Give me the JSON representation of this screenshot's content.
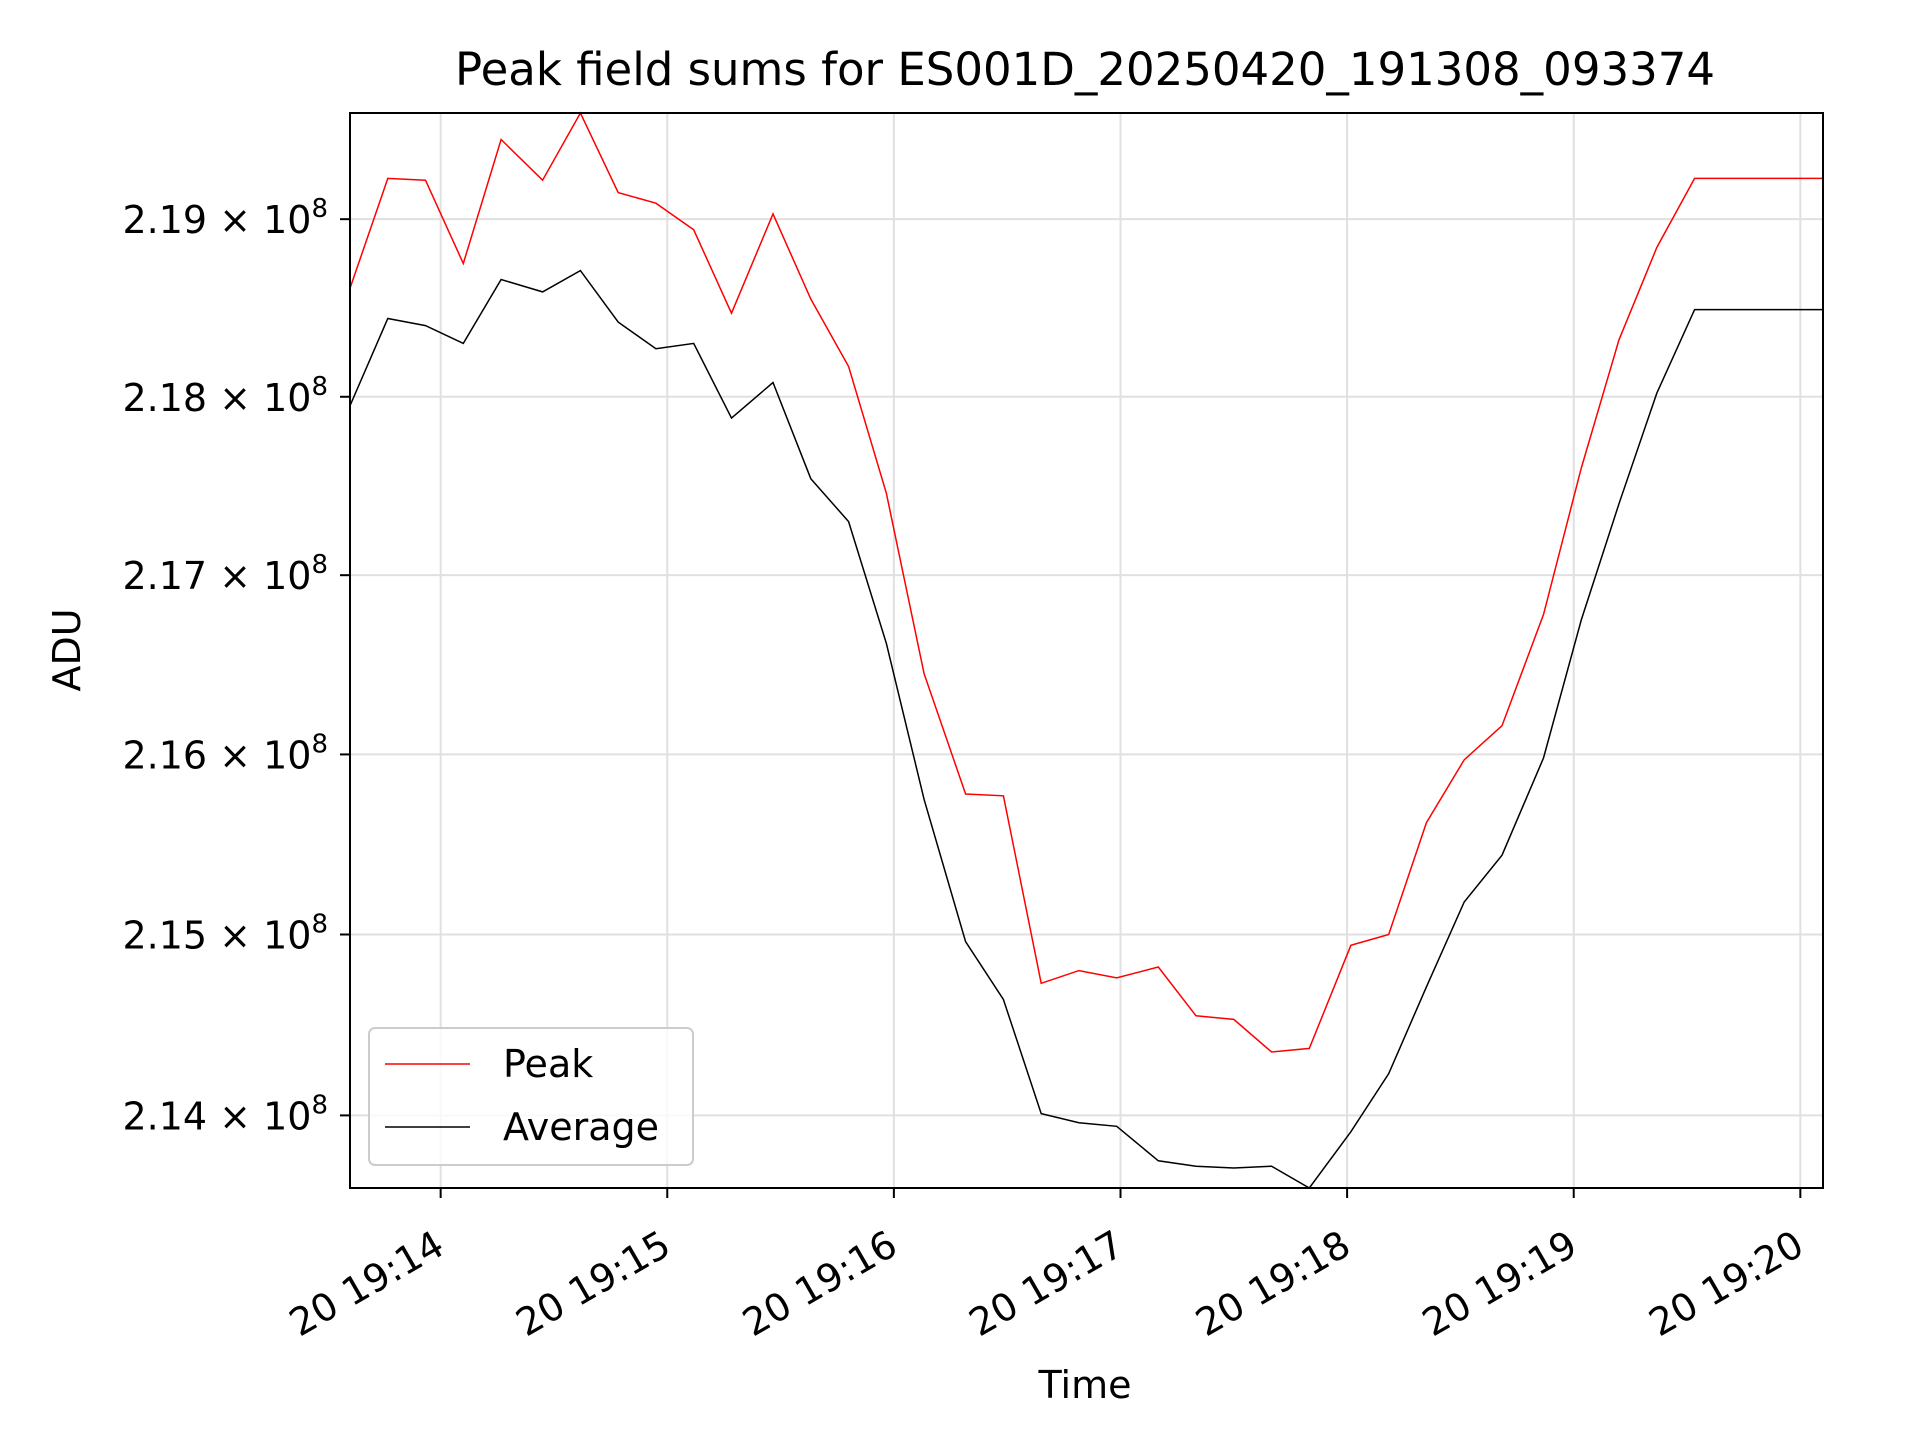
{
  "chart_data": {
    "type": "line",
    "title": "Peak field sums for ES001D_20250420_191308_093374",
    "xlabel": "Time",
    "ylabel": "ADU",
    "x_range": [
      "2025-04-20 19:13:36",
      "2025-04-20 19:20:06"
    ],
    "y_range": [
      213.6,
      219.6
    ],
    "y_unit_multiplier": "×10^6",
    "y_scale": "log",
    "x_ticks": [
      "20 19:14",
      "20 19:15",
      "20 19:16",
      "20 19:17",
      "20 19:18",
      "20 19:19",
      "20 19:20"
    ],
    "x_tick_times": [
      "2025-04-20 19:14:00",
      "2025-04-20 19:15:00",
      "2025-04-20 19:16:00",
      "2025-04-20 19:17:00",
      "2025-04-20 19:18:00",
      "2025-04-20 19:19:00",
      "2025-04-20 19:20:00"
    ],
    "y_ticks": [
      {
        "mantissa": "2.14",
        "value": 214.0
      },
      {
        "mantissa": "2.15",
        "value": 215.0
      },
      {
        "mantissa": "2.16",
        "value": 216.0
      },
      {
        "mantissa": "2.17",
        "value": 217.0
      },
      {
        "mantissa": "2.18",
        "value": 218.0
      },
      {
        "mantissa": "2.19",
        "value": 219.0
      }
    ],
    "y_tick_suffix": "× 10",
    "y_tick_exponent": "8",
    "grid": true,
    "legend_position": "lower-left",
    "x": [
      "19:13:36",
      "19:13:46",
      "19:13:56",
      "19:14:06",
      "19:14:16",
      "19:14:27",
      "19:14:37",
      "19:14:47",
      "19:14:57",
      "19:15:07",
      "19:15:17",
      "19:15:28",
      "19:15:38",
      "19:15:48",
      "19:15:58",
      "19:16:08",
      "19:16:19",
      "19:16:29",
      "19:16:39",
      "19:16:49",
      "19:16:59",
      "19:17:10",
      "19:17:20",
      "19:17:30",
      "19:17:40",
      "19:17:50",
      "19:18:01",
      "19:18:11",
      "19:18:21",
      "19:18:31",
      "19:18:41",
      "19:18:52",
      "19:19:02",
      "19:19:12",
      "19:19:22",
      "19:19:32",
      "19:19:43",
      "19:20:06"
    ],
    "series": [
      {
        "name": "Peak",
        "color": "#ff0000",
        "values": [
          218.61,
          219.23,
          219.22,
          218.75,
          219.45,
          219.22,
          219.6,
          219.15,
          219.09,
          218.94,
          218.47,
          219.03,
          218.55,
          218.17,
          217.46,
          216.45,
          215.78,
          215.77,
          214.73,
          214.8,
          214.76,
          214.82,
          214.55,
          214.53,
          214.35,
          214.37,
          214.94,
          215.0,
          215.62,
          215.97,
          216.16,
          216.78,
          217.6,
          218.32,
          218.84,
          219.23,
          219.23,
          219.23
        ]
      },
      {
        "name": "Average",
        "color": "#000000",
        "values": [
          217.95,
          218.44,
          218.4,
          218.3,
          218.66,
          218.59,
          218.71,
          218.42,
          218.27,
          218.3,
          217.88,
          218.08,
          217.54,
          217.3,
          216.62,
          215.75,
          214.96,
          214.64,
          214.01,
          213.96,
          213.94,
          213.75,
          213.72,
          213.71,
          213.72,
          213.6,
          213.91,
          214.23,
          214.71,
          215.18,
          215.44,
          215.98,
          216.75,
          217.4,
          218.02,
          218.49,
          218.49,
          218.49
        ]
      }
    ]
  }
}
